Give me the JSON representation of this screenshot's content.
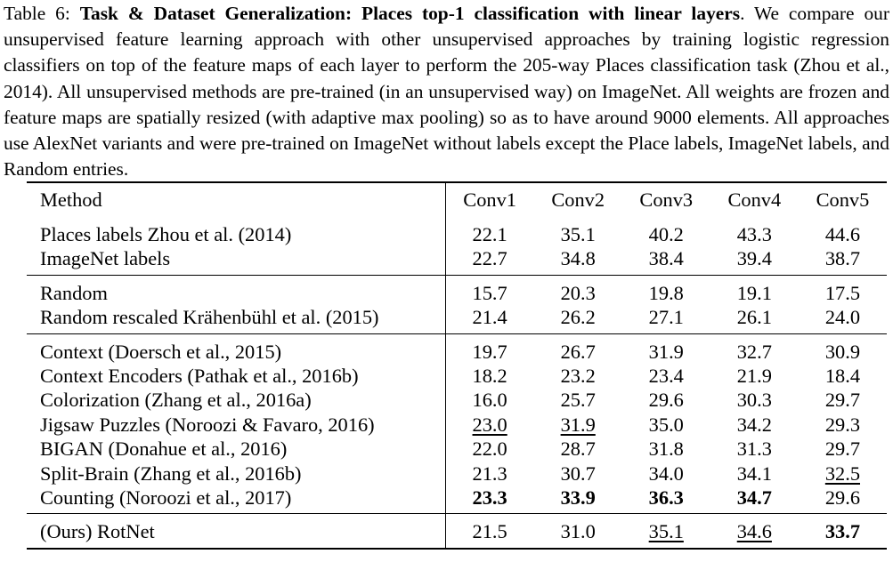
{
  "caption": {
    "prefix": "Table 6: ",
    "title": "Task & Dataset Generalization: Places top-1 classification with linear layers",
    "body": ". We compare our unsupervised feature learning approach with other unsupervised approaches by training logistic regression classifiers on top of the feature maps of each layer to perform the 205-way Places classification task (Zhou et al., 2014). All unsupervised methods are pre-trained (in an unsupervised way) on ImageNet. All weights are frozen and feature maps are spatially resized (with adaptive max pooling) so as to have around 9000 elements. All approaches use AlexNet variants and were pre-trained on ImageNet without labels except the Place labels, ImageNet labels, and Random entries."
  },
  "table": {
    "headers": [
      "Method",
      "Conv1",
      "Conv2",
      "Conv3",
      "Conv4",
      "Conv5"
    ],
    "groups": [
      [
        {
          "method": "Places labels Zhou et al. (2014)",
          "values": [
            "22.1",
            "35.1",
            "40.2",
            "43.3",
            "44.6"
          ]
        },
        {
          "method": "ImageNet labels",
          "values": [
            "22.7",
            "34.8",
            "38.4",
            "39.4",
            "38.7"
          ]
        }
      ],
      [
        {
          "method": "Random",
          "values": [
            "15.7",
            "20.3",
            "19.8",
            "19.1",
            "17.5"
          ]
        },
        {
          "method": "Random rescaled Krähenbühl et al. (2015)",
          "values": [
            "21.4",
            "26.2",
            "27.1",
            "26.1",
            "24.0"
          ]
        }
      ],
      [
        {
          "method": "Context (Doersch et al., 2015)",
          "values": [
            "19.7",
            "26.7",
            "31.9",
            "32.7",
            "30.9"
          ]
        },
        {
          "method": "Context Encoders (Pathak et al., 2016b)",
          "values": [
            "18.2",
            "23.2",
            "23.4",
            "21.9",
            "18.4"
          ]
        },
        {
          "method": "Colorization (Zhang et al., 2016a)",
          "values": [
            "16.0",
            "25.7",
            "29.6",
            "30.3",
            "29.7"
          ]
        },
        {
          "method": "Jigsaw Puzzles (Noroozi & Favaro, 2016)",
          "values": [
            "23.0",
            "31.9",
            "35.0",
            "34.2",
            "29.3"
          ]
        },
        {
          "method": "BIGAN (Donahue et al., 2016)",
          "values": [
            "22.0",
            "28.7",
            "31.8",
            "31.3",
            "29.7"
          ]
        },
        {
          "method": "Split-Brain (Zhang et al., 2016b)",
          "values": [
            "21.3",
            "30.7",
            "34.0",
            "34.1",
            "32.5"
          ]
        },
        {
          "method": "Counting (Noroozi et al., 2017)",
          "values": [
            "23.3",
            "33.9",
            "36.3",
            "34.7",
            "29.6"
          ]
        }
      ],
      [
        {
          "method": "(Ours) RotNet",
          "values": [
            "21.5",
            "31.0",
            "35.1",
            "34.6",
            "33.7"
          ]
        }
      ]
    ]
  }
}
